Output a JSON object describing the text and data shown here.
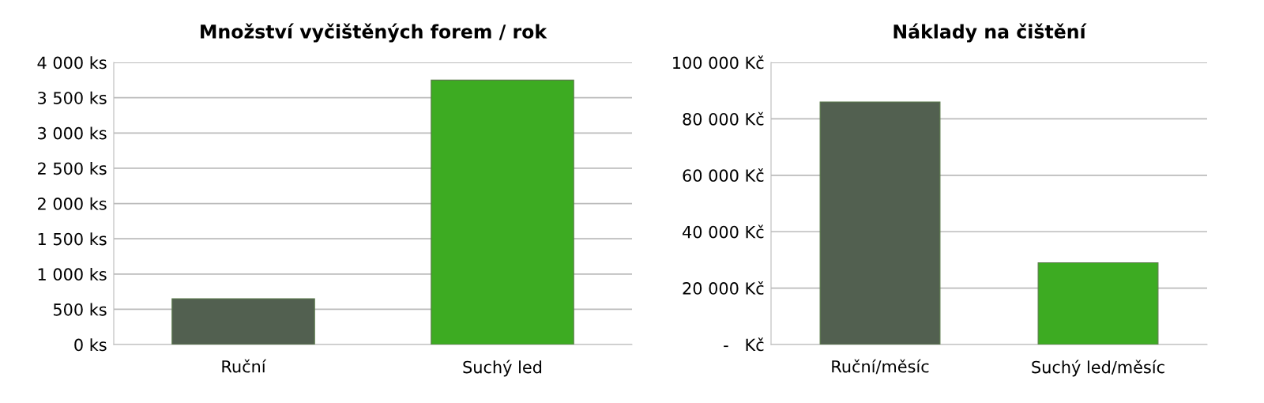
{
  "chart_data": [
    {
      "type": "bar",
      "title": "Množství vyčištěných forem / rok",
      "categories": [
        "Ruční",
        "Suchý led"
      ],
      "values": [
        650,
        3750
      ],
      "colors": [
        "#526050",
        "#3dab22"
      ],
      "ylim": [
        0,
        4000
      ],
      "yticks": [
        {
          "value": 0,
          "label": "0 ks"
        },
        {
          "value": 500,
          "label": "500 ks"
        },
        {
          "value": 1000,
          "label": "1 000 ks"
        },
        {
          "value": 1500,
          "label": "1 500 ks"
        },
        {
          "value": 2000,
          "label": "2 000 ks"
        },
        {
          "value": 2500,
          "label": "2 500 ks"
        },
        {
          "value": 3000,
          "label": "3 000 ks"
        },
        {
          "value": 3500,
          "label": "3 500 ks"
        },
        {
          "value": 4000,
          "label": "4 000 ks"
        }
      ],
      "grid": "y"
    },
    {
      "type": "bar",
      "title": "Náklady na čištění",
      "categories": [
        "Ruční/měsíc",
        "Suchý led/měsíc"
      ],
      "values": [
        86000,
        29000
      ],
      "colors": [
        "#526050",
        "#3dab22"
      ],
      "ylim": [
        0,
        100000
      ],
      "yticks": [
        {
          "value": 0,
          "label": "-   Kč"
        },
        {
          "value": 20000,
          "label": "20 000 Kč"
        },
        {
          "value": 40000,
          "label": "40 000 Kč"
        },
        {
          "value": 60000,
          "label": "60 000 Kč"
        },
        {
          "value": 80000,
          "label": "80 000 Kč"
        },
        {
          "value": 100000,
          "label": "100 000 Kč"
        }
      ],
      "grid": "y"
    }
  ]
}
